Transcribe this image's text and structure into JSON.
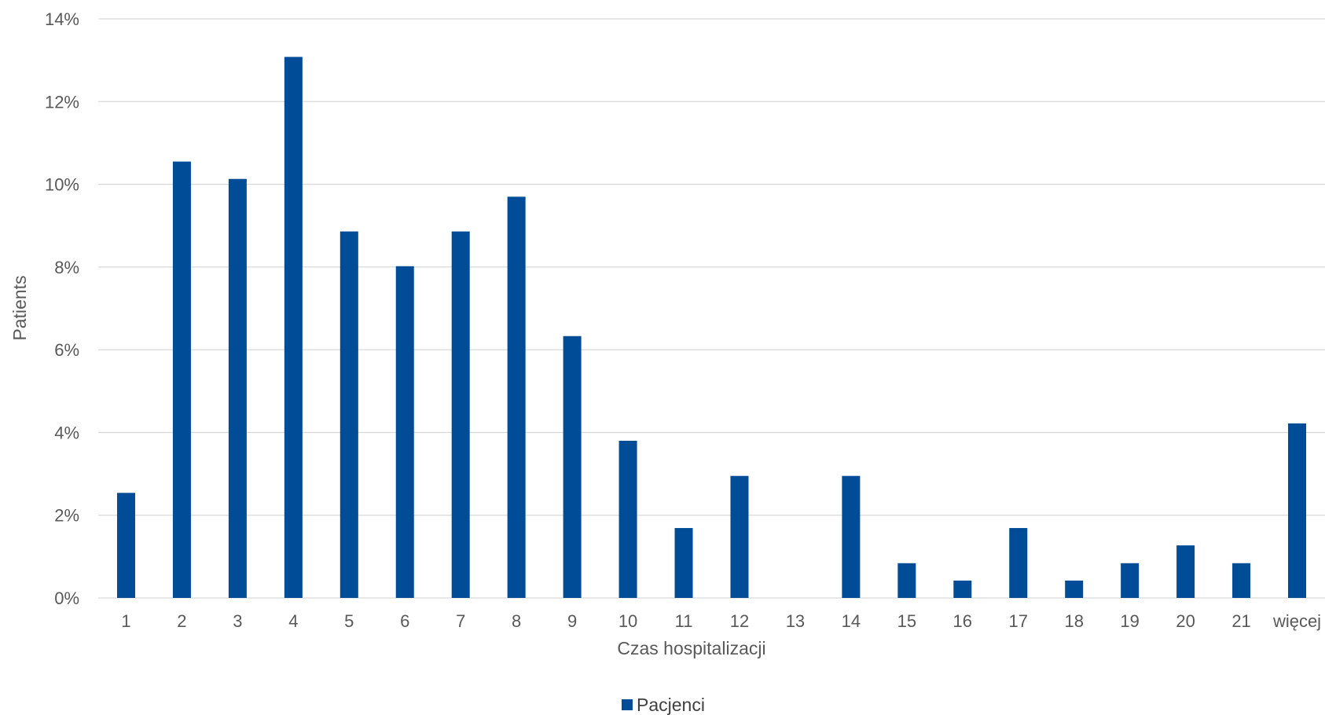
{
  "chart_data": {
    "type": "bar",
    "title": "",
    "xlabel": "Czas hospitalizacji",
    "ylabel": "Patients",
    "categories": [
      "1",
      "2",
      "3",
      "4",
      "5",
      "6",
      "7",
      "8",
      "9",
      "10",
      "11",
      "12",
      "13",
      "14",
      "15",
      "16",
      "17",
      "18",
      "19",
      "20",
      "21",
      "więcej"
    ],
    "series": [
      {
        "name": "Pacjenci",
        "color": "#004c97",
        "values": [
          2.54,
          10.55,
          10.13,
          13.08,
          8.86,
          8.02,
          8.86,
          9.7,
          6.33,
          3.8,
          1.69,
          2.95,
          0,
          2.95,
          0.84,
          0.42,
          1.69,
          0.42,
          0.84,
          1.27,
          0.84,
          4.22
        ]
      }
    ],
    "ylim": [
      0,
      14
    ],
    "yticks": [
      0,
      2,
      4,
      6,
      8,
      10,
      12,
      14
    ],
    "ytick_format": "percent",
    "grid": true,
    "legend_position": "bottom"
  }
}
